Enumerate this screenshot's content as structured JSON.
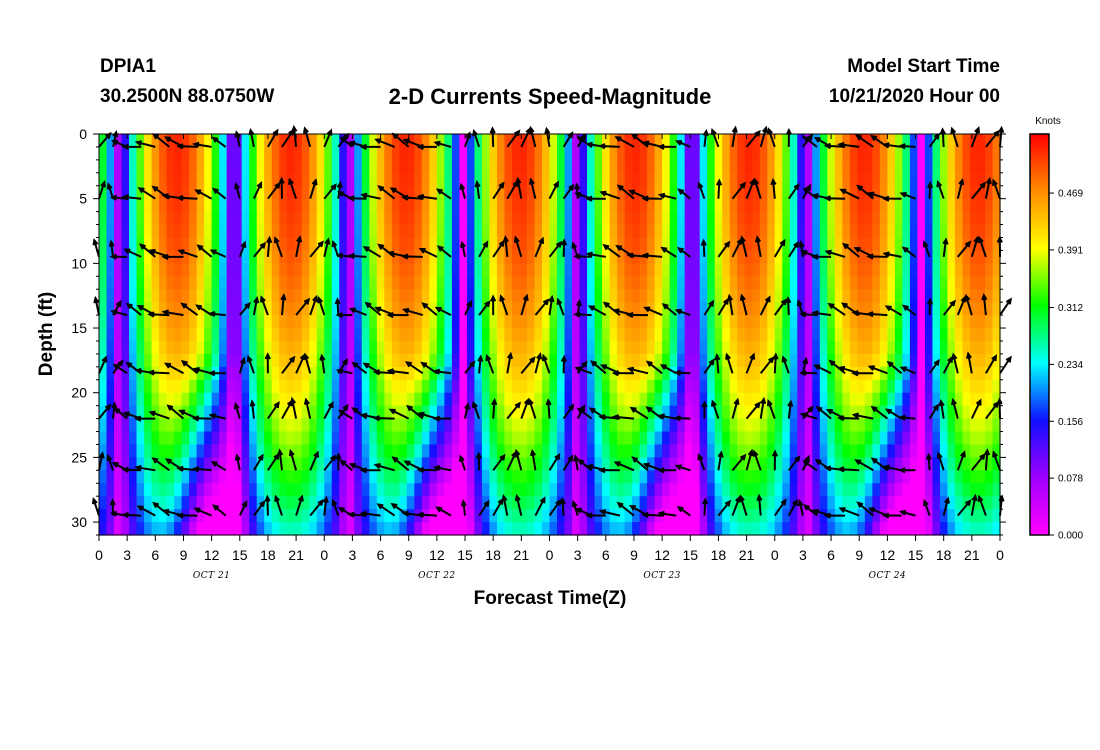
{
  "header": {
    "station": "DPIA1",
    "coordinates": "30.2500N 88.0750W",
    "title": "2-D Currents Speed-Magnitude",
    "model_start_label": "Model Start Time",
    "model_start_value": "10/21/2020 Hour 00"
  },
  "chart_data": {
    "type": "heatmap",
    "title": "2-D Currents Speed-Magnitude",
    "xlabel": "Forecast Time(Z)",
    "ylabel": "Depth (ft)",
    "x_range_hours": [
      0,
      96
    ],
    "y_range_ft": [
      0,
      31
    ],
    "x_tick_labels": [
      "0",
      "3",
      "6",
      "9",
      "12",
      "15",
      "18",
      "21",
      "0",
      "3",
      "6",
      "9",
      "12",
      "15",
      "18",
      "21",
      "0",
      "3",
      "6",
      "9",
      "12",
      "15",
      "18",
      "21",
      "0",
      "3",
      "6",
      "9",
      "12",
      "15",
      "18",
      "21",
      "0"
    ],
    "y_ticks": [
      0,
      5,
      10,
      15,
      20,
      25,
      30
    ],
    "day_labels": [
      {
        "label": "OCT 21",
        "hour": 12
      },
      {
        "label": "OCT 22",
        "hour": 36
      },
      {
        "label": "OCT 23",
        "hour": 60
      },
      {
        "label": "OCT 24",
        "hour": 84
      }
    ],
    "colorbar": {
      "unit": "Knots",
      "ticks": [
        "0.000",
        "0.078",
        "0.156",
        "0.234",
        "0.312",
        "0.391",
        "0.469"
      ],
      "range": [
        0,
        0.55
      ],
      "colors": [
        "#ff00ff",
        "#a000ff",
        "#1010ff",
        "#00ffff",
        "#00ff00",
        "#ffff00",
        "#ff8c00",
        "#ff0000"
      ]
    },
    "vectors": "current direction arrows at each time/depth sample, reversing with the tide"
  }
}
